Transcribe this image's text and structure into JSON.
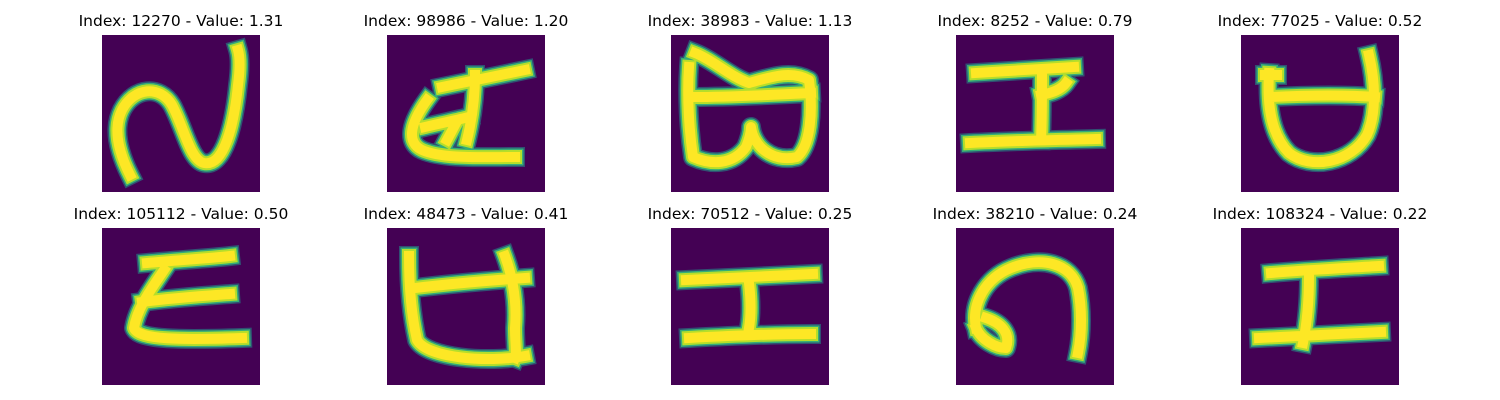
{
  "colors": {
    "background": "#440154",
    "stroke_core": "#fde725",
    "stroke_mid": "#b5de2b",
    "stroke_edge": "#35b779",
    "stroke_halo": "#21918c"
  },
  "panels": [
    {
      "title": "Index: 12270 - Value: 1.31",
      "glyph": "g1"
    },
    {
      "title": "Index: 98986 - Value: 1.20",
      "glyph": "g2"
    },
    {
      "title": "Index: 38983 - Value: 1.13",
      "glyph": "g3"
    },
    {
      "title": "Index: 8252 - Value: 0.79",
      "glyph": "g4"
    },
    {
      "title": "Index: 77025 - Value: 0.52",
      "glyph": "g5"
    },
    {
      "title": "Index: 105112 - Value: 0.50",
      "glyph": "g6"
    },
    {
      "title": "Index: 48473 - Value: 0.41",
      "glyph": "g7"
    },
    {
      "title": "Index: 70512 - Value: 0.25",
      "glyph": "g8"
    },
    {
      "title": "Index: 38210 - Value: 0.24",
      "glyph": "g9"
    },
    {
      "title": "Index: 108324 - Value: 0.22",
      "glyph": "g10"
    }
  ]
}
